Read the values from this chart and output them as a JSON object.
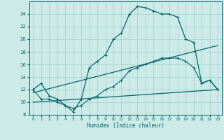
{
  "xlabel": "Humidex (Indice chaleur)",
  "bg_color": "#cceae7",
  "grid_color": "#aad4d0",
  "line_color": "#006666",
  "xlim": [
    -0.5,
    23.5
  ],
  "ylim": [
    8,
    26
  ],
  "yticks": [
    8,
    10,
    12,
    14,
    16,
    18,
    20,
    22,
    24
  ],
  "xticks": [
    0,
    1,
    2,
    3,
    4,
    5,
    6,
    7,
    8,
    9,
    10,
    11,
    12,
    13,
    14,
    15,
    16,
    17,
    18,
    19,
    20,
    21,
    22,
    23
  ],
  "line1_x": [
    0,
    1,
    2,
    3,
    4,
    5,
    6,
    7,
    8,
    9,
    10,
    11,
    12,
    13,
    14,
    15,
    16,
    17,
    18,
    19,
    20,
    21,
    22,
    23
  ],
  "line1_y": [
    12,
    13,
    11,
    10.5,
    9.5,
    8.5,
    10.5,
    15.5,
    16.5,
    17.5,
    20,
    21,
    24,
    25.2,
    25,
    24.5,
    24,
    24,
    23.5,
    20,
    19.5,
    13,
    13.5,
    12
  ],
  "line2_x": [
    0,
    1,
    2,
    3,
    4,
    5,
    6,
    7,
    8,
    9,
    10,
    11,
    12,
    13,
    14,
    15,
    16,
    17,
    18,
    19,
    20,
    21,
    22,
    23
  ],
  "line2_y": [
    12,
    10.5,
    10.5,
    10,
    9.5,
    9,
    9.5,
    10.5,
    11,
    12,
    12.5,
    13.5,
    15,
    15.5,
    16,
    16.5,
    17,
    17,
    17,
    16.5,
    15.5,
    13,
    13.5,
    12
  ],
  "line3_x": [
    0,
    23
  ],
  "line3_y": [
    10,
    12
  ],
  "line4_x": [
    0,
    23
  ],
  "line4_y": [
    11.5,
    19
  ]
}
